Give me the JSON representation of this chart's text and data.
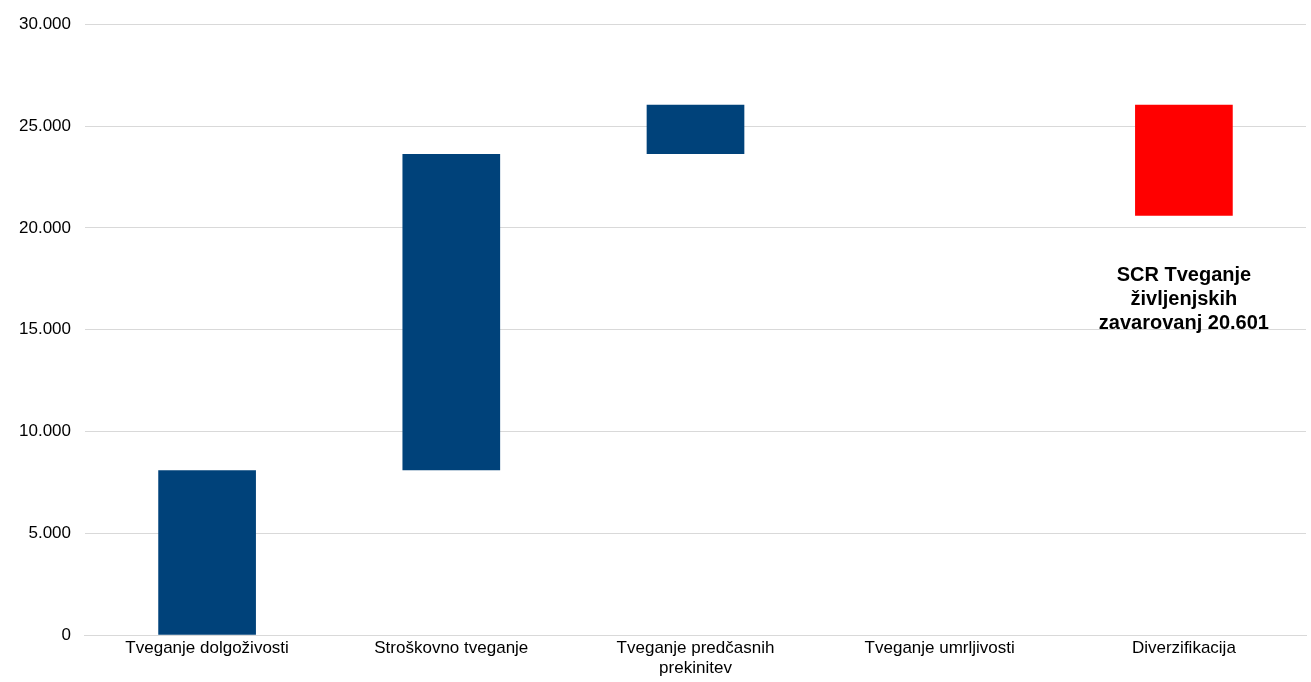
{
  "chart_data": {
    "type": "bar",
    "categories": [
      "Tveganje dolgoživosti",
      "Stroškovno tveganje",
      "Tveganje predčasnih prekinitev",
      "Tveganje umrljivosti",
      "Diverzifikacija"
    ],
    "base": [
      0,
      8100,
      23630,
      null,
      26040
    ],
    "values": [
      8100,
      15530,
      2410,
      null,
      -5440
    ],
    "colors": [
      "#00427a",
      "#00427a",
      "#00427a",
      "#00427a",
      "#ff0000"
    ],
    "ylim": [
      0,
      30000
    ],
    "yticks": [
      0,
      {
        "value": 5000,
        "label": "5.000"
      },
      {
        "value": 10000,
        "label": "10.000"
      },
      {
        "value": 15000,
        "label": "15.000"
      },
      {
        "value": 20000,
        "label": "20.000"
      },
      {
        "value": 25000,
        "label": "25.000"
      },
      {
        "value": 30000,
        "label": "30.000"
      }
    ],
    "grid": "y",
    "legend": false,
    "annotations": [
      "SCR Tveganje življenjskih zavarovanj 20.601"
    ]
  }
}
